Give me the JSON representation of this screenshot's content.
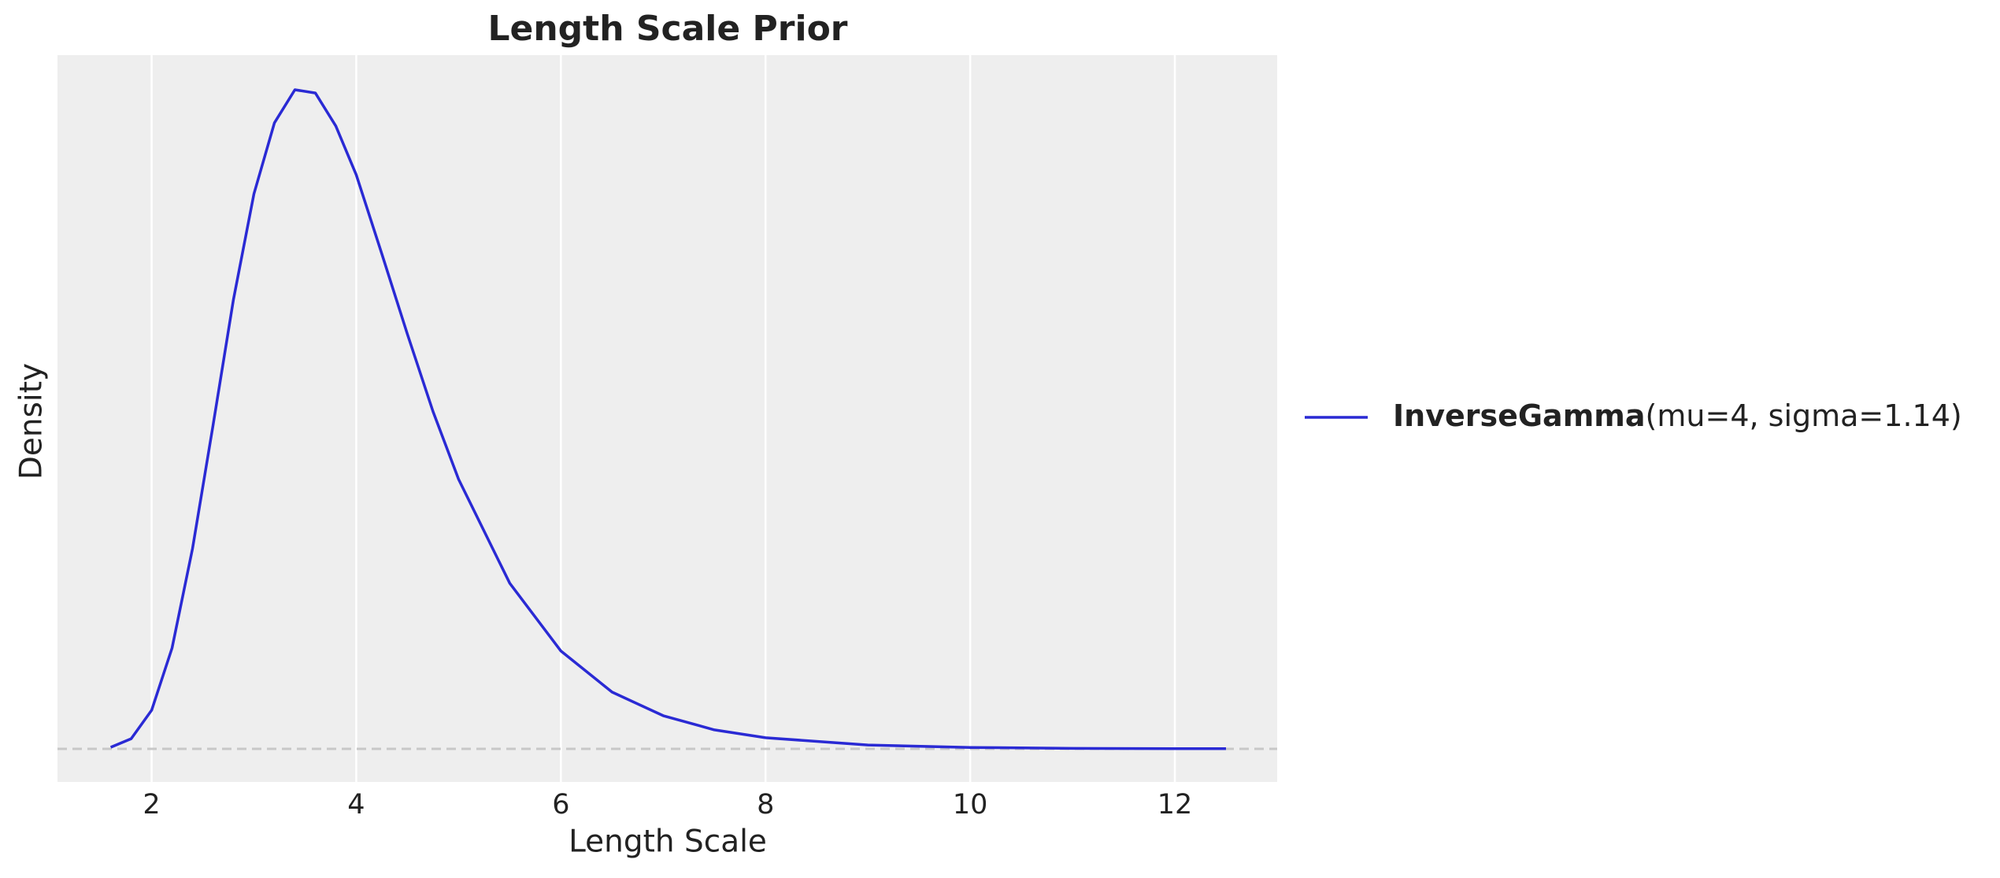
{
  "chart_data": {
    "type": "line",
    "title": "Length Scale Prior",
    "x_label": "Length Scale",
    "y_label": "Density",
    "x": [
      1.6,
      1.8,
      2.0,
      2.2,
      2.4,
      2.6,
      2.8,
      3.0,
      3.2,
      3.4,
      3.6,
      3.8,
      4.0,
      4.25,
      4.5,
      4.75,
      5.0,
      5.5,
      6.0,
      6.5,
      7.0,
      7.5,
      8.0,
      9.0,
      10.0,
      11.0,
      12.0,
      12.5
    ],
    "series": [
      {
        "name": "InverseGamma",
        "params": "(mu=4, sigma=1.14)",
        "color": "#2a2ad4",
        "values": [
          0.001,
          0.0064,
          0.0245,
          0.0639,
          0.127,
          0.205,
          0.285,
          0.352,
          0.397,
          0.418,
          0.416,
          0.395,
          0.364,
          0.314,
          0.263,
          0.214,
          0.171,
          0.105,
          0.062,
          0.036,
          0.021,
          0.012,
          0.007,
          0.0024,
          0.0009,
          0.0003,
          0.0001,
          0.0001
        ]
      }
    ],
    "reference_line": 0,
    "xlim": [
      1.08,
      13.0
    ],
    "ylim": [
      -0.021,
      0.44
    ],
    "xticks": [
      2,
      4,
      6,
      8,
      10,
      12
    ],
    "grid": true,
    "legend": "right"
  }
}
